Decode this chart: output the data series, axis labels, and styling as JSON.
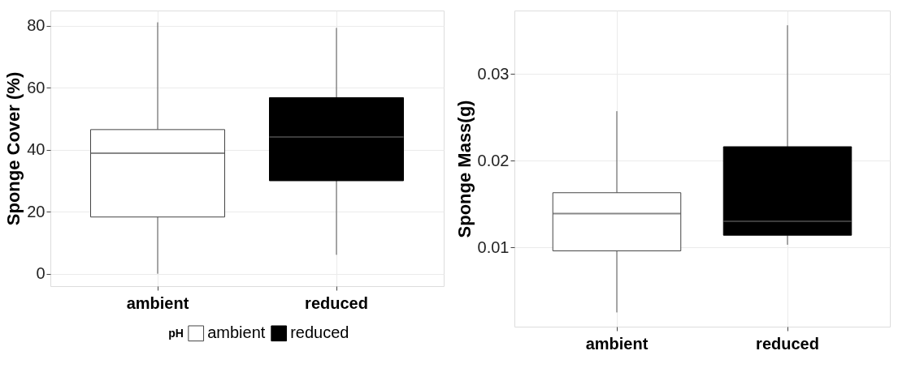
{
  "chart_data": [
    {
      "type": "box",
      "ylabel": "Sponge Cover (%)",
      "categories": [
        "ambient",
        "reduced"
      ],
      "series": [
        {
          "name": "ambient",
          "color": "#ffffff",
          "boxes": [
            {
              "low": 0,
              "q1": 18.3,
              "median": 38.9,
              "q3": 46.5,
              "high": 81.1
            },
            null
          ]
        },
        {
          "name": "reduced",
          "color": "#000000",
          "boxes": [
            null,
            {
              "low": 6.1,
              "q1": 30.0,
              "median": 44.1,
              "q3": 56.8,
              "high": 79.3
            }
          ]
        }
      ],
      "ylim": [
        -4,
        84.9
      ],
      "yticks": [
        0,
        20,
        40,
        60,
        80
      ],
      "grid": true,
      "legend": "bottom",
      "legend_title": "pH"
    },
    {
      "type": "box",
      "ylabel": "Sponge Mass(g)",
      "categories": [
        "ambient",
        "reduced"
      ],
      "series": [
        {
          "color": "#ffffff",
          "boxes": [
            {
              "low": 0.0025,
              "q1": 0.0096,
              "median": 0.0139,
              "q3": 0.0163,
              "high": 0.0257
            },
            null
          ]
        },
        {
          "color": "#000000",
          "boxes": [
            null,
            {
              "low": 0.0103,
              "q1": 0.0114,
              "median": 0.013,
              "q3": 0.0216,
              "high": 0.0356
            }
          ]
        }
      ],
      "ylim": [
        0.00086,
        0.0373
      ],
      "yticks": [
        0.01,
        0.02,
        0.03
      ],
      "grid": true
    }
  ]
}
